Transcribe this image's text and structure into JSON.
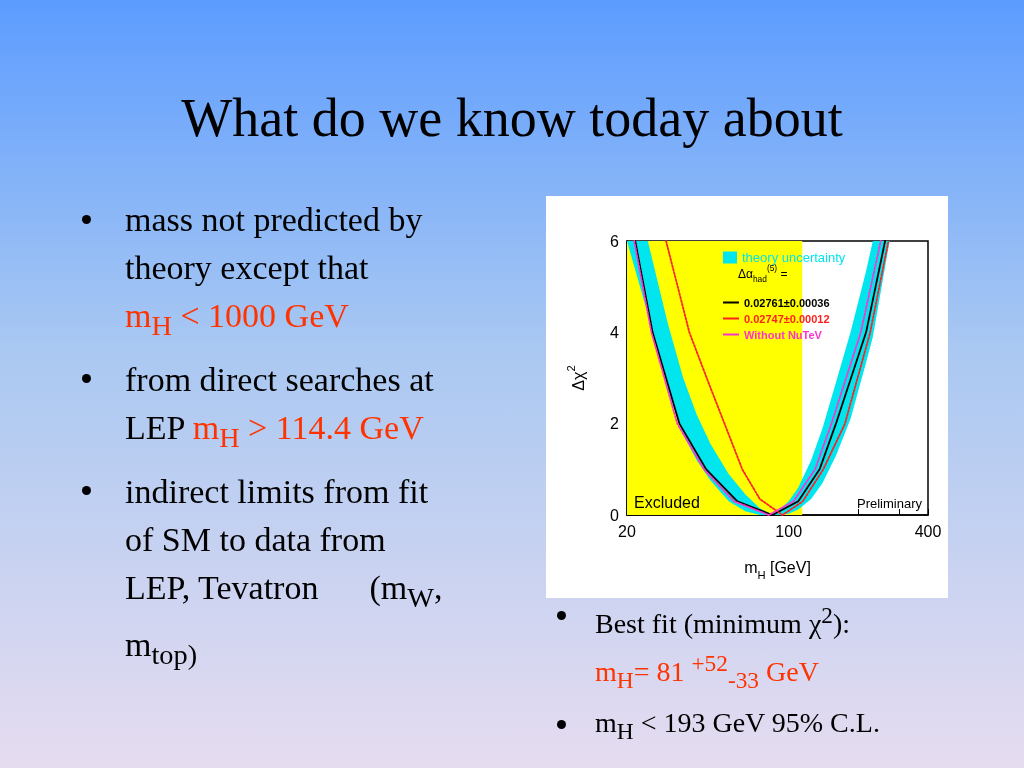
{
  "chart_data": {
    "type": "line",
    "title": "What do we know today about",
    "xlabel": "m$_{H}$ [GeV]",
    "ylabel": "Δχ$^{2}$",
    "legend_title": "Δα$_{had}$$^{(5)}$ =",
    "legend": "top",
    "marker": "none",
    "xlim": [
      20,
      400
    ],
    "ylim": [
      0,
      6
    ],
    "xticks": [
      20,
      {
        "value": 30,
        "label": null
      },
      {
        "value": 40,
        "label": null
      },
      {
        "value": 50,
        "label": null
      },
      {
        "value": 60,
        "label": null
      },
      {
        "value": 70,
        "label": null
      },
      {
        "value": 80,
        "label": null
      },
      {
        "value": 90,
        "label": null
      },
      100,
      {
        "value": 200,
        "label": null
      },
      {
        "value": 300,
        "label": null
      },
      400
    ],
    "yticks": [
      0,
      {
        "value": 1,
        "label": null
      },
      2,
      {
        "value": 3,
        "label": null
      },
      4,
      {
        "value": 5,
        "label": null
      },
      6
    ],
    "log": "x",
    "bands": [
      {
        "axis": "x",
        "from": 20,
        "to": 114.4,
        "label": "Excluded",
        "color": "#ffff00"
      }
    ],
    "series": [
      {
        "name": "theory uncertainty",
        "color": "#00e5ee",
        "x": [
          20,
          24.6,
          30,
          35,
          40,
          46,
          55,
          65,
          75,
          83,
          90,
          100,
          110,
          125,
          140,
          160,
          185,
          215,
          231,
          273
        ],
        "values": [
          null,
          null,
          null,
          null,
          null,
          null,
          null,
          null,
          null,
          null,
          null,
          null,
          null,
          null,
          null,
          null,
          null,
          null,
          null,
          null
        ],
        "lower": [
          6,
          4.4,
          2.7,
          1.75,
          1.2,
          0.75,
          0.3,
          0.08,
          0,
          0,
          0,
          0.03,
          0.12,
          0.35,
          0.7,
          1.3,
          2.1,
          3.3,
          3.9,
          6
        ],
        "upper": [
          6,
          6,
          4.2,
          3.0,
          2.2,
          1.55,
          0.9,
          0.45,
          0.15,
          0.03,
          0.1,
          0.3,
          0.6,
          1.2,
          1.9,
          2.9,
          4.0,
          5.3,
          6,
          6
        ]
      },
      {
        "name": "0.02761±0.00036",
        "color": "#000000",
        "line_style": "solid",
        "x": [
          21.7,
          25.8,
          33.7,
          44,
          60,
          85,
          110,
          136,
          160,
          216,
          261
        ],
        "values": [
          6,
          4,
          2,
          1,
          0.3,
          0,
          0.3,
          1,
          2,
          4,
          6
        ]
      },
      {
        "name": "0.02747±0.00012",
        "color": "#ff2020",
        "line_style": "dotted",
        "x": [
          29.5,
          37.2,
          45,
          52.8,
          63,
          75,
          94,
          115,
          141,
          175,
          225,
          270
        ],
        "values": [
          6,
          4,
          2.9,
          2,
          1,
          0.35,
          0,
          0.3,
          1,
          2,
          4,
          6
        ]
      },
      {
        "name": "Without NuTeV",
        "color": "#ff33cc",
        "line_style": "dotted",
        "x": [
          21.5,
          25.5,
          33,
          43,
          58,
          82,
          105,
          130,
          153,
          205,
          250
        ],
        "values": [
          6,
          4,
          2,
          1,
          0.3,
          0,
          0.3,
          1,
          2,
          4,
          6
        ]
      }
    ],
    "annotations": [
      "Preliminary",
      "mass not predicted by theory except that",
      "m$_{H}$ < 1000 GeV",
      "from direct searches at LEP",
      "m$_{H}$ > 114.4 GeV",
      "indirect limits from fit of SM to data from LEP, Tevatron      (m$_{W}$, m$_{top)}$",
      "Best fit (minimum χ$^{2}$):",
      "m$_{H}$= 81 $^{+52}$$_{-33}$ GeV",
      "m$_{H}$ < 193 GeV  95% C.L."
    ]
  }
}
